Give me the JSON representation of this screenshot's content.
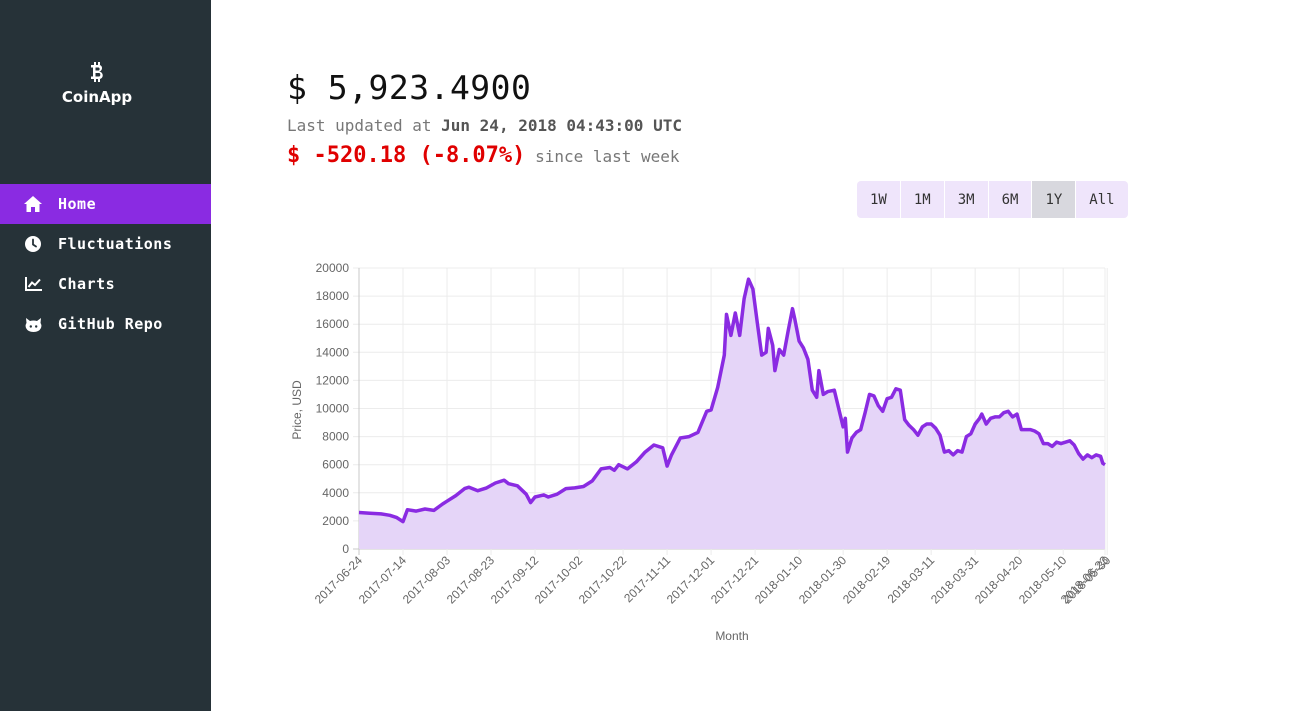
{
  "sidebar": {
    "brand": {
      "name": "CoinApp",
      "icon": "bitcoin-icon"
    },
    "items": [
      {
        "label": "Home",
        "icon": "home-icon",
        "active": true
      },
      {
        "label": "Fluctuations",
        "icon": "clock-icon",
        "active": false
      },
      {
        "label": "Charts",
        "icon": "line-chart-icon",
        "active": false
      },
      {
        "label": "GitHub Repo",
        "icon": "github-icon",
        "active": false
      }
    ]
  },
  "header": {
    "price": "$ 5,923.4900",
    "updated_prefix": "Last updated at",
    "updated_time": "Jun 24, 2018 04:43:00 UTC",
    "change_value": "$ -520.18 (-8.07%)",
    "change_suffix": "since last week"
  },
  "ranges": {
    "options": [
      "1W",
      "1M",
      "3M",
      "6M",
      "1Y",
      "All"
    ],
    "selected": "1Y"
  },
  "colors": {
    "sidebar_bg": "#263238",
    "accent": "#8a2be2",
    "area_fill": "#e5d5f8",
    "negative": "#e00000"
  },
  "chart_data": {
    "type": "area",
    "xlabel": "Month",
    "ylabel": "Price, USD",
    "ylim": [
      0,
      20000
    ],
    "yticks": [
      0,
      2000,
      4000,
      6000,
      8000,
      10000,
      12000,
      14000,
      16000,
      18000,
      20000
    ],
    "xticks": [
      "2017-06-24",
      "2017-07-14",
      "2017-08-03",
      "2017-08-23",
      "2017-09-12",
      "2017-10-02",
      "2017-10-22",
      "2017-11-11",
      "2017-12-01",
      "2017-12-21",
      "2018-01-10",
      "2018-01-30",
      "2018-02-19",
      "2018-03-11",
      "2018-03-31",
      "2018-04-20",
      "2018-05-10",
      "2018-05-30",
      "2018-06-23"
    ],
    "grid": true,
    "series": [
      {
        "values": [
          [
            0,
            2600
          ],
          [
            5,
            2550
          ],
          [
            10,
            2500
          ],
          [
            14,
            2400
          ],
          [
            17,
            2250
          ],
          [
            20,
            1950
          ],
          [
            22,
            2800
          ],
          [
            26,
            2700
          ],
          [
            30,
            2850
          ],
          [
            34,
            2750
          ],
          [
            38,
            3200
          ],
          [
            40,
            3400
          ],
          [
            44,
            3800
          ],
          [
            48,
            4300
          ],
          [
            50,
            4400
          ],
          [
            54,
            4150
          ],
          [
            58,
            4350
          ],
          [
            62,
            4700
          ],
          [
            66,
            4900
          ],
          [
            68,
            4650
          ],
          [
            72,
            4500
          ],
          [
            76,
            3900
          ],
          [
            78,
            3300
          ],
          [
            80,
            3700
          ],
          [
            84,
            3850
          ],
          [
            86,
            3700
          ],
          [
            90,
            3900
          ],
          [
            94,
            4300
          ],
          [
            98,
            4350
          ],
          [
            102,
            4450
          ],
          [
            106,
            4850
          ],
          [
            110,
            5700
          ],
          [
            114,
            5800
          ],
          [
            116,
            5600
          ],
          [
            118,
            6000
          ],
          [
            122,
            5700
          ],
          [
            126,
            6200
          ],
          [
            130,
            6900
          ],
          [
            134,
            7400
          ],
          [
            138,
            7200
          ],
          [
            140,
            5900
          ],
          [
            142,
            6700
          ],
          [
            146,
            7900
          ],
          [
            150,
            8000
          ],
          [
            154,
            8300
          ],
          [
            158,
            9800
          ],
          [
            160,
            9900
          ],
          [
            163,
            11500
          ],
          [
            166,
            13800
          ],
          [
            167,
            16700
          ],
          [
            169,
            15200
          ],
          [
            171,
            16800
          ],
          [
            173,
            15200
          ],
          [
            175,
            17800
          ],
          [
            177,
            19200
          ],
          [
            179,
            18500
          ],
          [
            181,
            16100
          ],
          [
            183,
            13800
          ],
          [
            185,
            14000
          ],
          [
            186,
            15700
          ],
          [
            188,
            14500
          ],
          [
            189,
            12700
          ],
          [
            191,
            14200
          ],
          [
            193,
            13800
          ],
          [
            195,
            15500
          ],
          [
            197,
            17100
          ],
          [
            198,
            16400
          ],
          [
            200,
            14800
          ],
          [
            202,
            14300
          ],
          [
            204,
            13500
          ],
          [
            206,
            11300
          ],
          [
            208,
            10800
          ],
          [
            209,
            12700
          ],
          [
            211,
            11000
          ],
          [
            213,
            11200
          ],
          [
            216,
            11300
          ],
          [
            218,
            10000
          ],
          [
            220,
            8700
          ],
          [
            221,
            9300
          ],
          [
            222,
            6900
          ],
          [
            224,
            7900
          ],
          [
            226,
            8300
          ],
          [
            228,
            8500
          ],
          [
            230,
            9700
          ],
          [
            232,
            11000
          ],
          [
            234,
            10900
          ],
          [
            236,
            10200
          ],
          [
            238,
            9800
          ],
          [
            240,
            10700
          ],
          [
            242,
            10800
          ],
          [
            244,
            11400
          ],
          [
            246,
            11300
          ],
          [
            248,
            9200
          ],
          [
            250,
            8800
          ],
          [
            252,
            8500
          ],
          [
            254,
            8100
          ],
          [
            256,
            8700
          ],
          [
            258,
            8900
          ],
          [
            260,
            8900
          ],
          [
            262,
            8600
          ],
          [
            264,
            8100
          ],
          [
            266,
            6900
          ],
          [
            268,
            7000
          ],
          [
            270,
            6700
          ],
          [
            272,
            7000
          ],
          [
            274,
            6900
          ],
          [
            276,
            8000
          ],
          [
            278,
            8200
          ],
          [
            280,
            8900
          ],
          [
            282,
            9300
          ],
          [
            283,
            9600
          ],
          [
            285,
            8900
          ],
          [
            287,
            9300
          ],
          [
            289,
            9400
          ],
          [
            291,
            9400
          ],
          [
            293,
            9700
          ],
          [
            295,
            9800
          ],
          [
            297,
            9400
          ],
          [
            299,
            9600
          ],
          [
            301,
            8500
          ],
          [
            303,
            8500
          ],
          [
            305,
            8500
          ],
          [
            307,
            8400
          ],
          [
            309,
            8200
          ],
          [
            311,
            7500
          ],
          [
            313,
            7500
          ],
          [
            315,
            7300
          ],
          [
            317,
            7600
          ],
          [
            319,
            7500
          ],
          [
            321,
            7600
          ],
          [
            323,
            7700
          ],
          [
            325,
            7400
          ],
          [
            327,
            6800
          ],
          [
            329,
            6400
          ],
          [
            331,
            6700
          ],
          [
            333,
            6500
          ],
          [
            335,
            6700
          ],
          [
            337,
            6600
          ],
          [
            338,
            6100
          ],
          [
            339,
            6000
          ]
        ]
      }
    ]
  }
}
